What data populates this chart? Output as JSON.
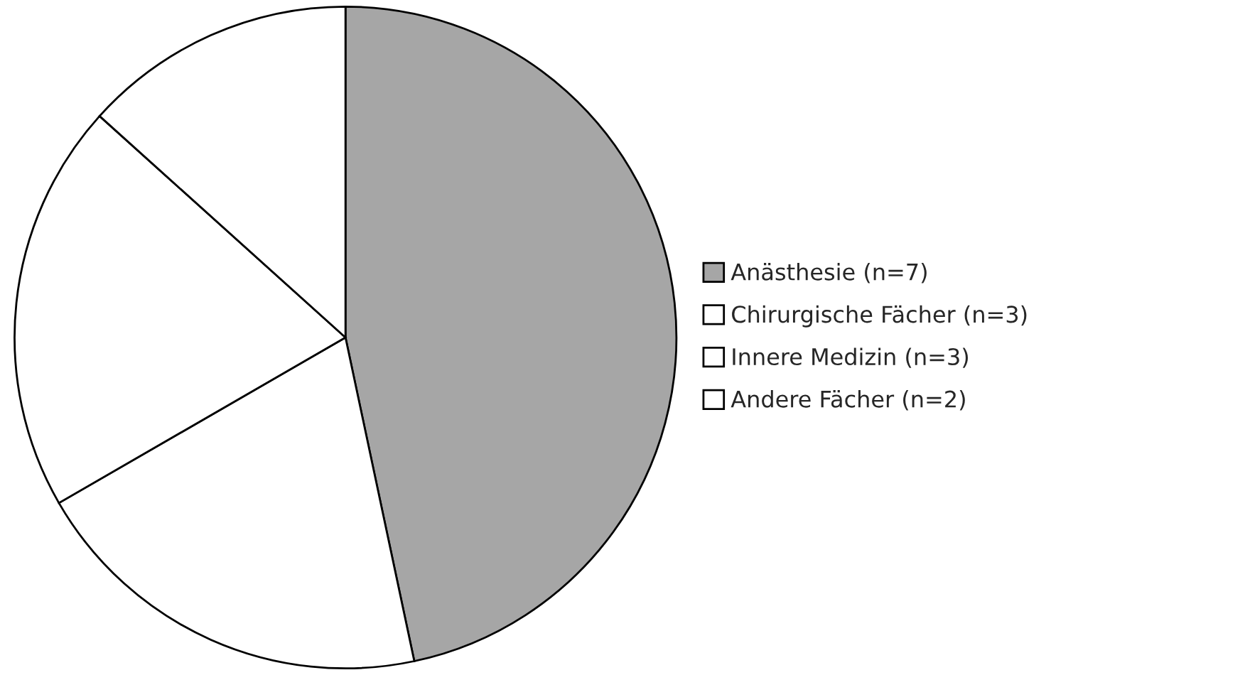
{
  "chart_data": {
    "type": "pie",
    "categories": [
      "Anästhesie (n=7)",
      "Chirurgische Fächer (n=3)",
      "Innere Medizin (n=3)",
      "Andere Fächer (n=2)"
    ],
    "values": [
      7,
      3,
      3,
      2
    ],
    "colors": [
      "#a6a6a6",
      "#ffffff",
      "#ffffff",
      "#ffffff"
    ],
    "legend": "right"
  }
}
